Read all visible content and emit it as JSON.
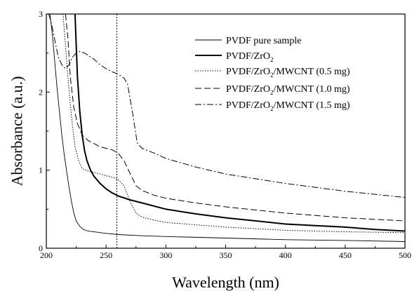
{
  "chart_data": {
    "type": "line",
    "title": "",
    "xlabel": "Wavelength (nm)",
    "ylabel": "Absorbance (a.u.)",
    "xlim": [
      200,
      500
    ],
    "ylim": [
      0,
      3
    ],
    "xticks": [
      "200",
      "250",
      "300",
      "350",
      "400",
      "450",
      "500"
    ],
    "yticks": [
      "0",
      "1",
      "2",
      "3"
    ],
    "grid": false,
    "legend_position": "top-right",
    "annotations": [
      {
        "type": "vertical-dotted-line",
        "x": 259
      }
    ],
    "series": [
      {
        "name": "PVDF pure sample",
        "legend_main": "PVDF pure sample",
        "legend_tail": "",
        "style": "solid-thin",
        "x": [
          203,
          205,
          207,
          209,
          211,
          213,
          215,
          217,
          219,
          221,
          223,
          225,
          228,
          231,
          235,
          240,
          245,
          250,
          260,
          280,
          300,
          350,
          400,
          450,
          500
        ],
        "y": [
          3.0,
          2.75,
          2.4,
          2.05,
          1.75,
          1.45,
          1.2,
          0.98,
          0.78,
          0.6,
          0.45,
          0.35,
          0.28,
          0.24,
          0.22,
          0.21,
          0.2,
          0.19,
          0.175,
          0.16,
          0.15,
          0.13,
          0.11,
          0.1,
          0.085
        ]
      },
      {
        "name": "PVDF/ZrO2",
        "legend_main": "PVDF/ZrO",
        "legend_sub": "2",
        "legend_tail": "",
        "style": "solid-bold",
        "x": [
          224,
          226,
          228,
          230,
          232,
          234,
          237,
          240,
          245,
          250,
          255,
          260,
          270,
          280,
          300,
          325,
          350,
          375,
          400,
          425,
          450,
          475,
          500
        ],
        "y": [
          3.0,
          2.2,
          1.75,
          1.45,
          1.25,
          1.12,
          1.0,
          0.92,
          0.83,
          0.76,
          0.71,
          0.67,
          0.62,
          0.58,
          0.5,
          0.44,
          0.39,
          0.35,
          0.31,
          0.29,
          0.27,
          0.24,
          0.22
        ]
      },
      {
        "name": "PVDF/ZrO2/MWCNT (0.5 mg)",
        "legend_main": "PVDF/ZrO",
        "legend_sub": "2",
        "legend_tail": "/MWCNT (0.5 mg)",
        "style": "dotted",
        "x": [
          214,
          216,
          218,
          220,
          222,
          224,
          227,
          230,
          235,
          240,
          245,
          250,
          255,
          260,
          265,
          270,
          275,
          280,
          290,
          300,
          350,
          400,
          450,
          500
        ],
        "y": [
          3.0,
          2.6,
          2.2,
          1.85,
          1.55,
          1.3,
          1.12,
          1.02,
          0.99,
          0.97,
          0.95,
          0.93,
          0.91,
          0.88,
          0.8,
          0.6,
          0.45,
          0.4,
          0.36,
          0.33,
          0.27,
          0.23,
          0.21,
          0.2
        ]
      },
      {
        "name": "PVDF/ZrO2/MWCNT (1.0 mg)",
        "legend_main": "PVDF/ZrO",
        "legend_sub": "2",
        "legend_tail": "/MWCNT (1.0 mg)",
        "style": "dashed",
        "x": [
          216,
          218,
          220,
          223,
          226,
          230,
          235,
          240,
          245,
          250,
          255,
          260,
          265,
          270,
          275,
          280,
          290,
          300,
          325,
          350,
          400,
          450,
          500
        ],
        "y": [
          3.0,
          2.7,
          2.2,
          1.8,
          1.6,
          1.45,
          1.38,
          1.34,
          1.3,
          1.28,
          1.26,
          1.22,
          1.12,
          0.96,
          0.8,
          0.74,
          0.68,
          0.64,
          0.58,
          0.53,
          0.45,
          0.39,
          0.35
        ]
      },
      {
        "name": "PVDF/ZrO2/MWCNT (1.5 mg)",
        "legend_main": "PVDF/ZrO",
        "legend_sub": "2",
        "legend_tail": "/MWCNT (1.5 mg)",
        "style": "dash-dot",
        "x": [
          202,
          204,
          206,
          208,
          210,
          213,
          216,
          219,
          222,
          225,
          228,
          232,
          236,
          240,
          245,
          250,
          255,
          260,
          265,
          268,
          272,
          276,
          280,
          290,
          300,
          325,
          350,
          375,
          400,
          450,
          500
        ],
        "y": [
          3.0,
          2.9,
          2.75,
          2.6,
          2.45,
          2.35,
          2.3,
          2.35,
          2.45,
          2.5,
          2.52,
          2.5,
          2.46,
          2.42,
          2.35,
          2.3,
          2.26,
          2.23,
          2.18,
          2.1,
          1.75,
          1.35,
          1.28,
          1.22,
          1.15,
          1.04,
          0.95,
          0.89,
          0.83,
          0.73,
          0.65
        ]
      }
    ]
  }
}
